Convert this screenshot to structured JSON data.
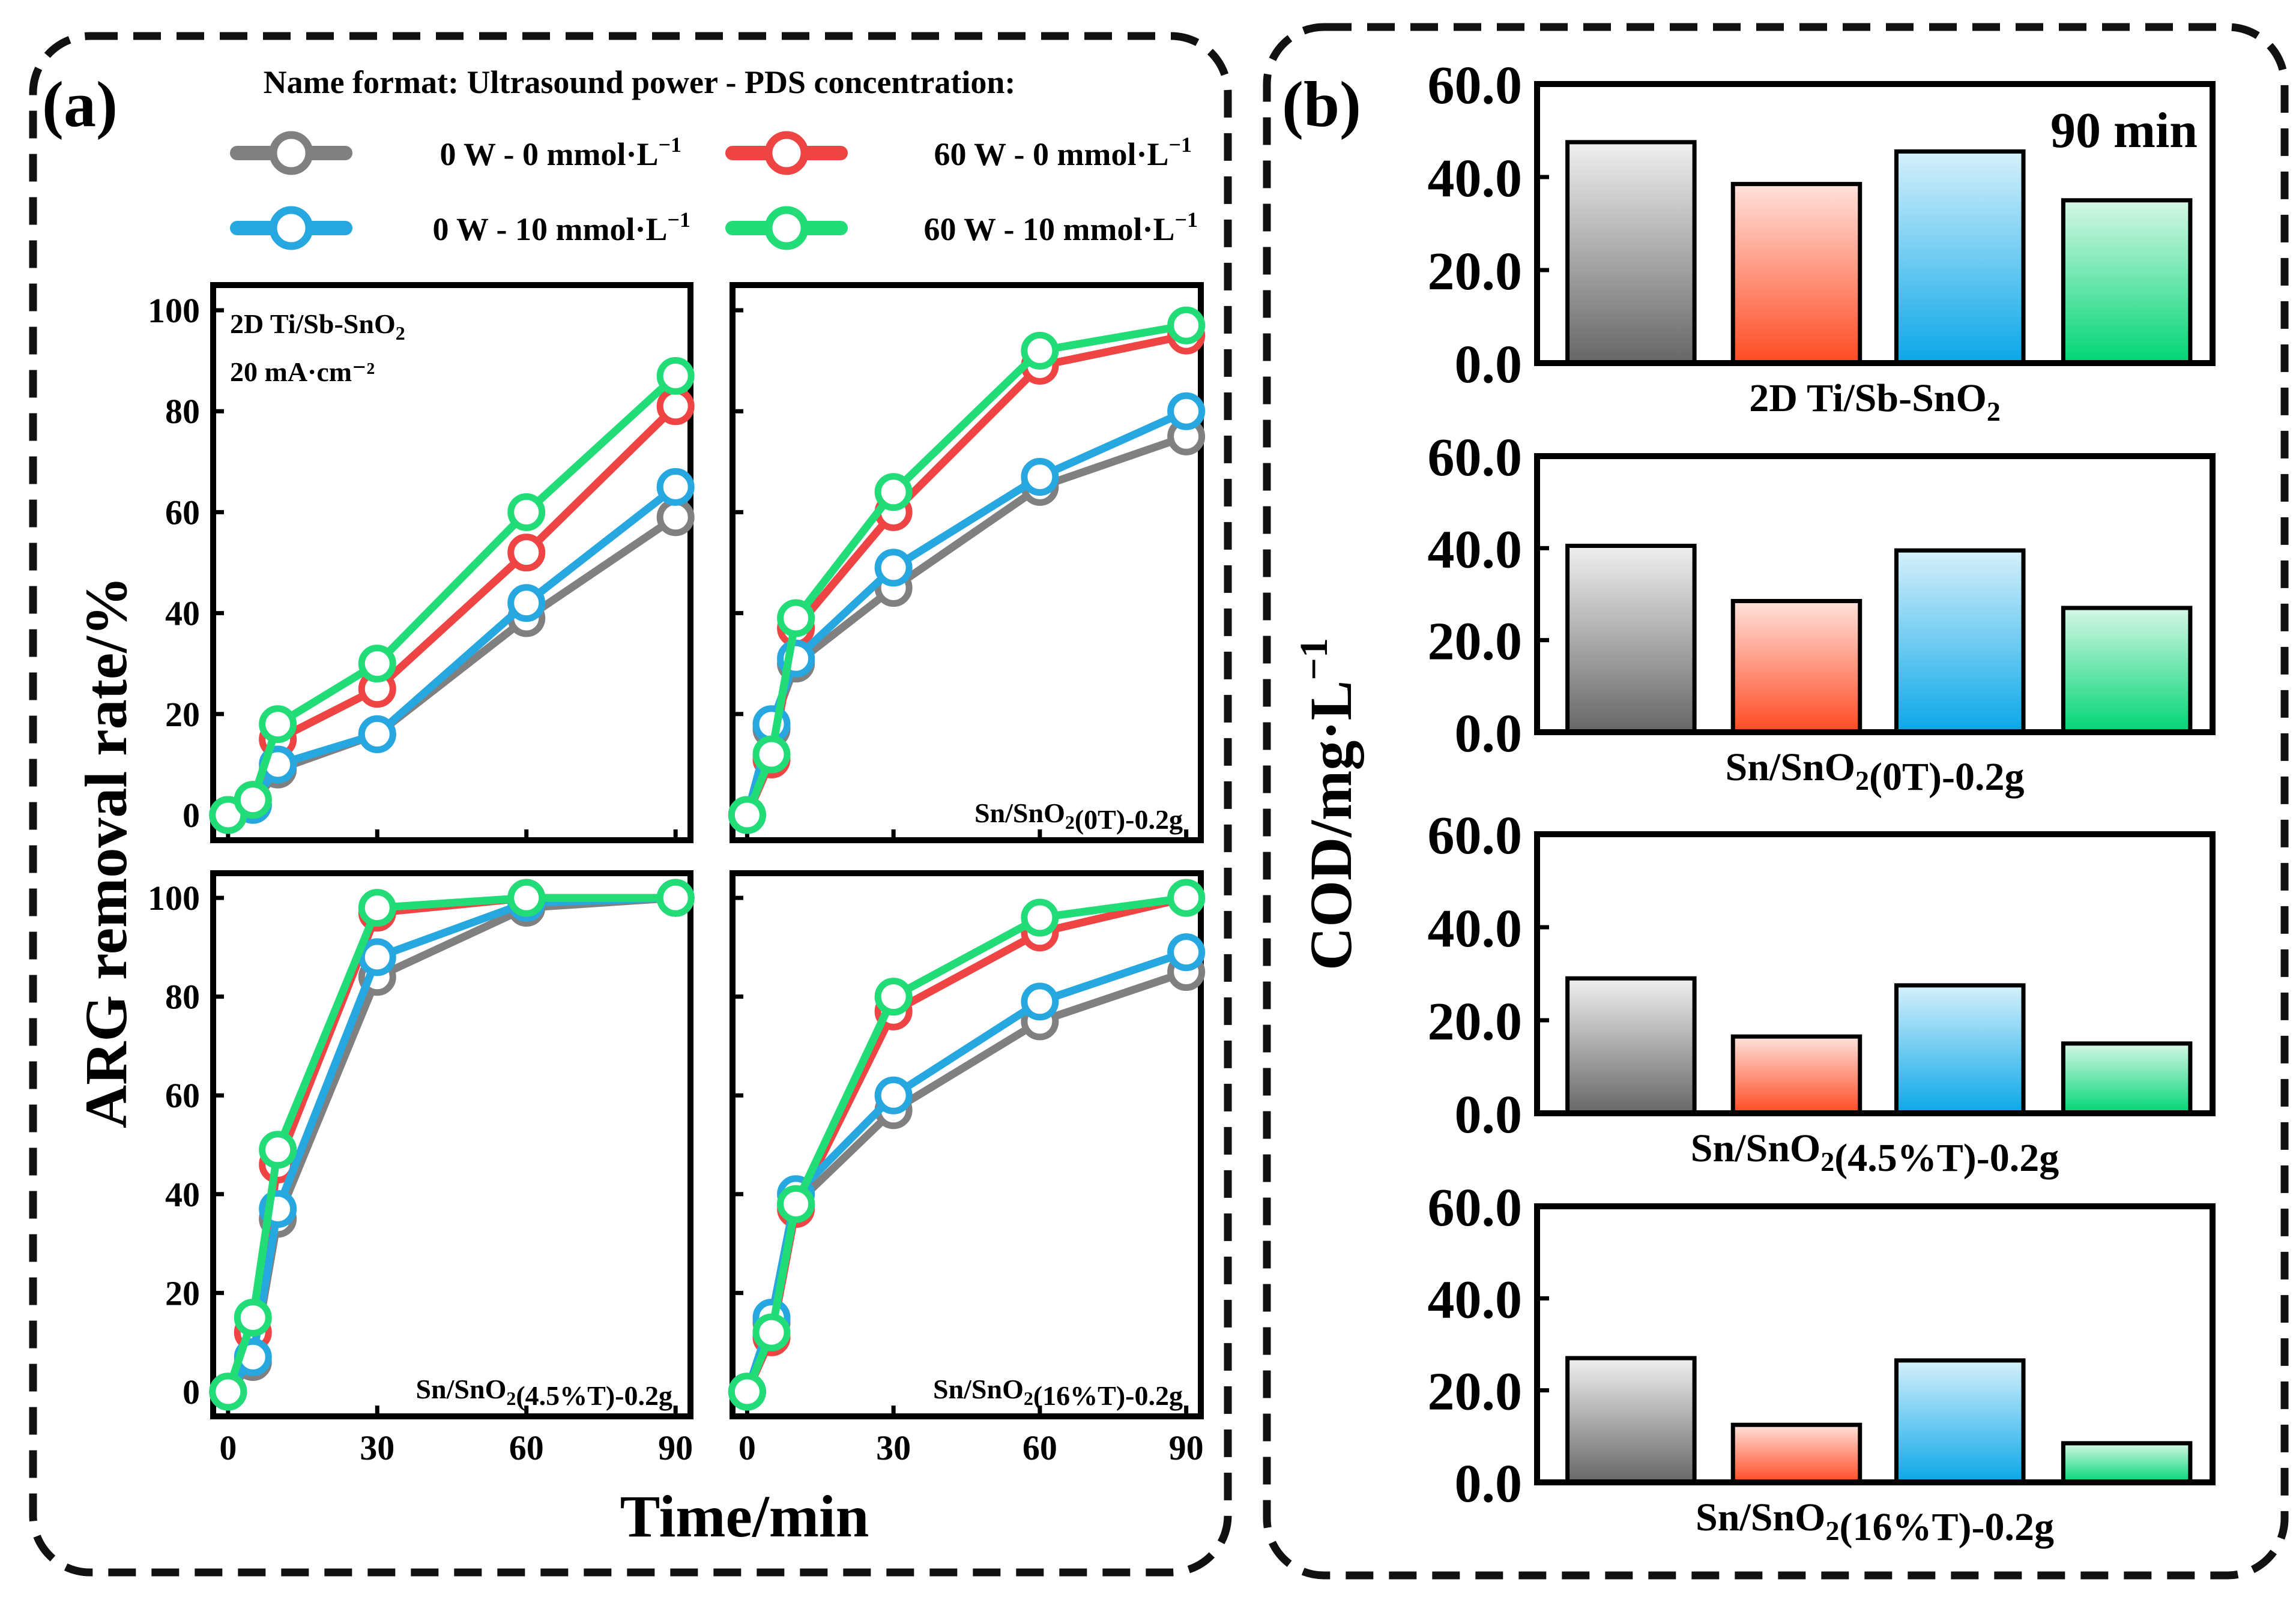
{
  "panel_a": {
    "label": "(a)",
    "legend_title": "Name format: Ultrasound power - PDS concentration:",
    "xlabel": "Time/min",
    "ylabel": "ARG removal rate/%"
  },
  "panel_b": {
    "label": "(b)",
    "ylabel": "COD/mg·L",
    "ylabel_exp": "−1",
    "time_label": "90 min"
  },
  "colors": {
    "gray": "#808080",
    "red": "#ee4444",
    "blue": "#27a7e0",
    "green": "#22dd77"
  },
  "chart_data": [
    {
      "type": "line",
      "title": "2D Ti/Sb-SnO2",
      "subtitle": "20 mA·cm⁻²",
      "x": [
        0,
        5,
        10,
        30,
        60,
        90
      ],
      "xlim": [
        -3,
        93
      ],
      "ylim": [
        -5,
        105
      ],
      "xticks": [
        0,
        30,
        60,
        90
      ],
      "yticks": [
        0,
        20,
        40,
        60,
        80,
        100
      ],
      "series": [
        {
          "name": "0 W - 0 mmol·L⁻¹",
          "color": "#808080",
          "values": [
            0,
            2,
            9,
            16,
            39,
            59
          ]
        },
        {
          "name": "60 W - 0 mmol·L⁻¹",
          "color": "#ee4444",
          "values": [
            0,
            3,
            15,
            25,
            52,
            81
          ]
        },
        {
          "name": "0 W - 10 mmol·L⁻¹",
          "color": "#27a7e0",
          "values": [
            0,
            2,
            10,
            16,
            42,
            65
          ]
        },
        {
          "name": "60 W - 10 mmol·L⁻¹",
          "color": "#22dd77",
          "values": [
            0,
            3,
            18,
            30,
            60,
            87
          ]
        }
      ]
    },
    {
      "type": "line",
      "title": "Sn/SnO2(0T)-0.2g",
      "x": [
        0,
        5,
        10,
        30,
        60,
        90
      ],
      "xlim": [
        -3,
        93
      ],
      "ylim": [
        -5,
        105
      ],
      "xticks": [
        0,
        30,
        60,
        90
      ],
      "yticks": [
        0,
        20,
        40,
        60,
        80,
        100
      ],
      "series": [
        {
          "name": "0 W - 0 mmol·L⁻¹",
          "color": "#808080",
          "values": [
            0,
            17,
            30,
            45,
            65,
            75
          ]
        },
        {
          "name": "60 W - 0 mmol·L⁻¹",
          "color": "#ee4444",
          "values": [
            0,
            11,
            37,
            60,
            89,
            95
          ]
        },
        {
          "name": "0 W - 10 mmol·L⁻¹",
          "color": "#27a7e0",
          "values": [
            0,
            18,
            31,
            49,
            67,
            80
          ]
        },
        {
          "name": "60 W - 10 mmol·L⁻¹",
          "color": "#22dd77",
          "values": [
            0,
            12,
            39,
            64,
            92,
            97
          ]
        }
      ]
    },
    {
      "type": "line",
      "title": "Sn/SnO2(4.5%T)-0.2g",
      "x": [
        0,
        5,
        10,
        30,
        60,
        90
      ],
      "xlim": [
        -3,
        93
      ],
      "ylim": [
        -5,
        105
      ],
      "xticks": [
        0,
        30,
        60,
        90
      ],
      "yticks": [
        0,
        20,
        40,
        60,
        80,
        100
      ],
      "series": [
        {
          "name": "0 W - 0 mmol·L⁻¹",
          "color": "#808080",
          "values": [
            0,
            6,
            35,
            84,
            98,
            100
          ]
        },
        {
          "name": "60 W - 0 mmol·L⁻¹",
          "color": "#ee4444",
          "values": [
            0,
            12,
            46,
            97,
            100,
            100
          ]
        },
        {
          "name": "0 W - 10 mmol·L⁻¹",
          "color": "#27a7e0",
          "values": [
            0,
            7,
            37,
            88,
            99,
            100
          ]
        },
        {
          "name": "60 W - 10 mmol·L⁻¹",
          "color": "#22dd77",
          "values": [
            0,
            15,
            49,
            98,
            100,
            100
          ]
        }
      ]
    },
    {
      "type": "line",
      "title": "Sn/SnO2(16%T)-0.2g",
      "x": [
        0,
        5,
        10,
        30,
        60,
        90
      ],
      "xlim": [
        -3,
        93
      ],
      "ylim": [
        -5,
        105
      ],
      "xticks": [
        0,
        30,
        60,
        90
      ],
      "yticks": [
        0,
        20,
        40,
        60,
        80,
        100
      ],
      "series": [
        {
          "name": "0 W - 0 mmol·L⁻¹",
          "color": "#808080",
          "values": [
            0,
            14,
            38,
            57,
            75,
            85
          ]
        },
        {
          "name": "60 W - 0 mmol·L⁻¹",
          "color": "#ee4444",
          "values": [
            0,
            11,
            37,
            77,
            93,
            100
          ]
        },
        {
          "name": "0 W - 10 mmol·L⁻¹",
          "color": "#27a7e0",
          "values": [
            0,
            15,
            40,
            60,
            79,
            89
          ]
        },
        {
          "name": "60 W - 10 mmol·L⁻¹",
          "color": "#22dd77",
          "values": [
            0,
            12,
            38,
            80,
            96,
            100
          ]
        }
      ]
    },
    {
      "type": "bar",
      "title": "2D Ti/Sb-SnO2",
      "categories": [
        "0 W - 0 mmol·L⁻¹",
        "60 W - 0 mmol·L⁻¹",
        "0 W - 10 mmol·L⁻¹",
        "60 W - 10 mmol·L⁻¹"
      ],
      "values": [
        47.5,
        38.5,
        45.5,
        35.0
      ],
      "ylim": [
        0,
        60
      ],
      "yticks": [
        "0.0",
        "20.0",
        "40.0",
        "60.0"
      ]
    },
    {
      "type": "bar",
      "title": "Sn/SnO2(0T)-0.2g",
      "categories": [
        "0 W - 0 mmol·L⁻¹",
        "60 W - 0 mmol·L⁻¹",
        "0 W - 10 mmol·L⁻¹",
        "60 W - 10 mmol·L⁻¹"
      ],
      "values": [
        40.5,
        28.5,
        39.5,
        27.0
      ],
      "ylim": [
        0,
        60
      ],
      "yticks": [
        "0.0",
        "20.0",
        "40.0",
        "60.0"
      ]
    },
    {
      "type": "bar",
      "title": "Sn/SnO2(4.5%T)-0.2g",
      "categories": [
        "0 W - 0 mmol·L⁻¹",
        "60 W - 0 mmol·L⁻¹",
        "0 W - 10 mmol·L⁻¹",
        "60 W - 10 mmol·L⁻¹"
      ],
      "values": [
        29.0,
        16.5,
        27.5,
        15.0
      ],
      "ylim": [
        0,
        60
      ],
      "yticks": [
        "0.0",
        "20.0",
        "40.0",
        "60.0"
      ]
    },
    {
      "type": "bar",
      "title": "Sn/SnO2(16%T)-0.2g",
      "categories": [
        "0 W - 0 mmol·L⁻¹",
        "60 W - 0 mmol·L⁻¹",
        "0 W - 10 mmol·L⁻¹",
        "60 W - 10 mmol·L⁻¹"
      ],
      "values": [
        27.0,
        12.5,
        26.5,
        8.5
      ],
      "ylim": [
        0,
        60
      ],
      "yticks": [
        "0.0",
        "20.0",
        "40.0",
        "60.0"
      ]
    }
  ]
}
